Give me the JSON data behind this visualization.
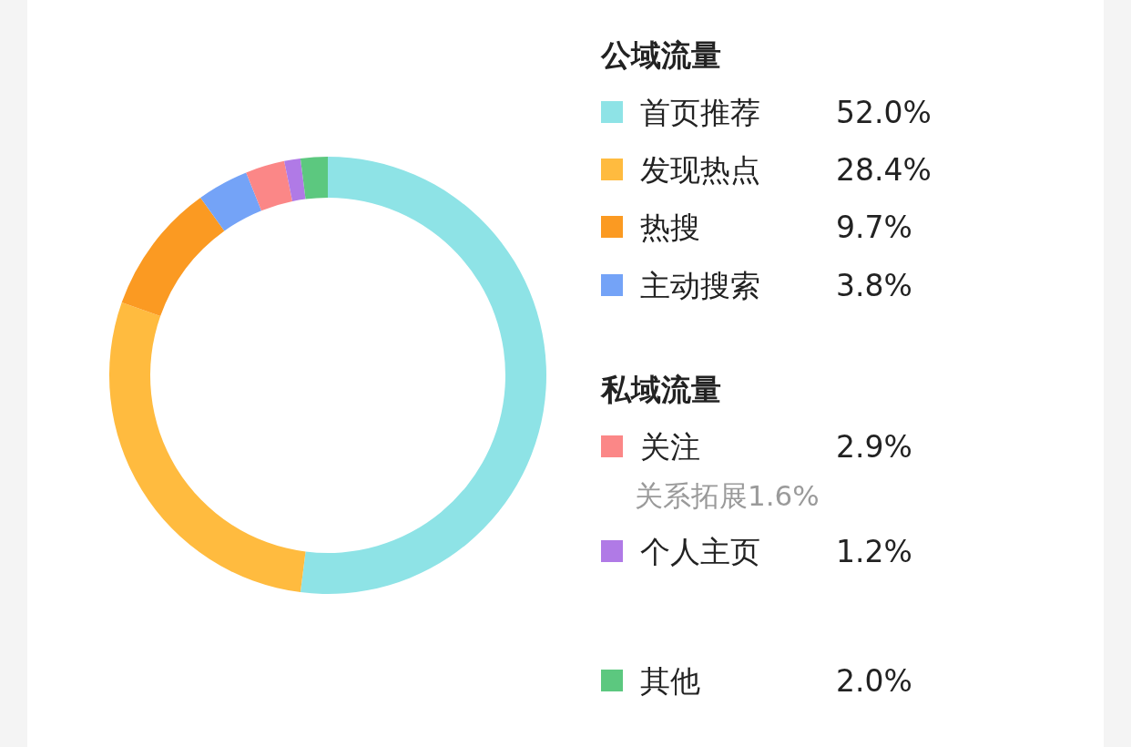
{
  "chart_data": {
    "type": "donut",
    "categories": [
      "首页推荐",
      "发现热点",
      "热搜",
      "主动搜索",
      "关注",
      "个人主页",
      "其他"
    ],
    "values": [
      52.0,
      28.4,
      9.7,
      3.8,
      2.9,
      1.2,
      2.0
    ],
    "value_labels": [
      "52.0%",
      "28.4%",
      "9.7%",
      "3.8%",
      "2.9%",
      "1.2%",
      "2.0%"
    ],
    "colors": [
      "#8ee3e6",
      "#ffbb3f",
      "#fb9a22",
      "#74a3f7",
      "#fb8787",
      "#b07ae6",
      "#5cc87f"
    ],
    "annotations": [
      "公域流量",
      "私域流量",
      "关系拓展1.6%"
    ],
    "legend": "right"
  }
}
